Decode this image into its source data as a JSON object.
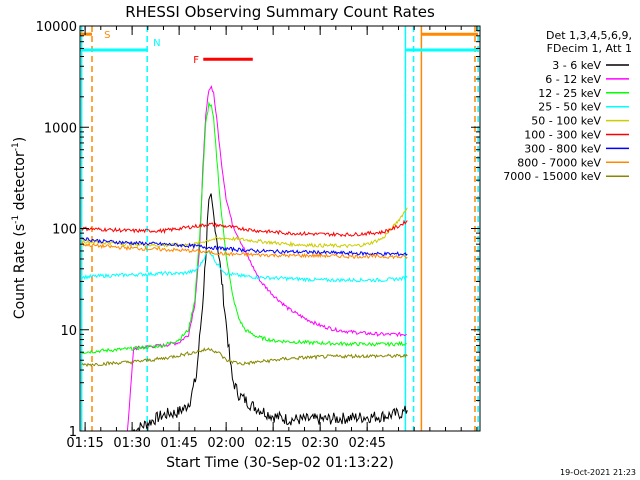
{
  "chart_data": {
    "type": "line",
    "title": "RHESSI Observing Summary Count Rates",
    "xlabel": "Start Time (30-Sep-02 01:13:22)",
    "ylabel": "Count Rate (s⁻¹ detector⁻¹)",
    "ylabel_parts": {
      "main": "Count Rate (s",
      "sup1": "-1",
      "mid": " detector",
      "sup2": "-1",
      "end": ")"
    },
    "footer": "19-Oct-2021 21:23",
    "y_scale": "log",
    "ylim": [
      1,
      10000
    ],
    "xlim_min": [
      73.37,
      201.0
    ],
    "y_ticks": [
      "1",
      "10",
      "100",
      "1000",
      "10000"
    ],
    "y_tick_values": [
      1,
      10,
      100,
      1000,
      10000
    ],
    "x_ticks": [
      "01:15",
      "01:30",
      "01:45",
      "02:00",
      "02:15",
      "02:30",
      "02:45"
    ],
    "x_tick_values": [
      75,
      90,
      105,
      120,
      135,
      150,
      165
    ],
    "legend": {
      "header": [
        "Det 1,3,4,5,6,9,",
        "FDecim 1, Att 1"
      ],
      "entries": [
        {
          "label": "3 - 6 keV",
          "color": "#000000"
        },
        {
          "label": "6 - 12 keV",
          "color": "#ff00ff"
        },
        {
          "label": "12 - 25 keV",
          "color": "#00ff00"
        },
        {
          "label": "25 - 50 keV",
          "color": "#00ffff"
        },
        {
          "label": "50 - 100 keV",
          "color": "#cccc00"
        },
        {
          "label": "100 - 300 keV",
          "color": "#ff0000"
        },
        {
          "label": "300 - 800 keV",
          "color": "#0000ff"
        },
        {
          "label": "800 - 7000 keV",
          "color": "#ff8800"
        },
        {
          "label": "7000 - 15000 keV",
          "color": "#888800"
        }
      ]
    },
    "annotations": [
      {
        "label": "S",
        "color": "#ff8800",
        "x_start": 73.4,
        "x_end": 77.2,
        "y": 8300
      },
      {
        "label": "N",
        "color": "#00ffff",
        "x_start": 73.4,
        "x_end": 94.8,
        "y": 5800
      },
      {
        "label": "F",
        "color": "#ff0000",
        "x_start": 112.7,
        "x_end": 128.5,
        "y": 4700
      },
      {
        "label": "",
        "color": "#00ffff",
        "x_start": 177.2,
        "x_end": 200.4,
        "y": 5800
      },
      {
        "label": "",
        "color": "#ff8800",
        "x_start": 182.3,
        "x_end": 200.4,
        "y": 8300
      }
    ],
    "vlines": [
      {
        "x": 73.9,
        "color": "#00ffff",
        "style": "solid"
      },
      {
        "x": 77.2,
        "color": "#ff8800",
        "style": "dashed"
      },
      {
        "x": 94.8,
        "color": "#00ffff",
        "style": "dashed"
      },
      {
        "x": 177.2,
        "color": "#00ffff",
        "style": "solid"
      },
      {
        "x": 179.8,
        "color": "#00ffff",
        "style": "dashed"
      },
      {
        "x": 182.3,
        "color": "#ff8800",
        "style": "solid"
      },
      {
        "x": 200.4,
        "color": "#00ffff",
        "style": "dashed"
      },
      {
        "x": 199.4,
        "color": "#ff8800",
        "style": "dashed"
      }
    ],
    "series": [
      {
        "name": "3 - 6 keV",
        "color": "#000000",
        "x": [
          90.3,
          95,
          99,
          102,
          104,
          105.5,
          107,
          108.5,
          110.5,
          112.5,
          113.5,
          114,
          114.5,
          115.2,
          115.8,
          116.8,
          118,
          119.2,
          120.3,
          121.2,
          122,
          124,
          128,
          135,
          140,
          150,
          160,
          170,
          176,
          177.8
        ],
        "y": [
          1,
          1.2,
          1.4,
          1.5,
          1.5,
          1.6,
          1.7,
          2,
          3.5,
          18,
          55,
          110,
          170,
          200,
          150,
          90,
          45,
          20,
          9.5,
          5,
          3.2,
          2.3,
          1.8,
          1.4,
          1.3,
          1.3,
          1.35,
          1.4,
          1.5,
          1.6
        ]
      },
      {
        "name": "6 - 12 keV",
        "color": "#ff00ff",
        "x": [
          88.5,
          90.5,
          95,
          100,
          105,
          108,
          110,
          111.5,
          112.5,
          113.5,
          114.5,
          115.3,
          116,
          117,
          118.3,
          120,
          122,
          125,
          128,
          131,
          135,
          140,
          145,
          150,
          155,
          160,
          165,
          170,
          175,
          177.6
        ],
        "y": [
          1,
          6.5,
          6.8,
          7,
          7.5,
          9,
          18,
          60,
          350,
          1300,
          2400,
          2500,
          2200,
          1200,
          500,
          200,
          110,
          70,
          45,
          30,
          22,
          16,
          13,
          11,
          10,
          9.5,
          9.2,
          9,
          9,
          9
        ]
      },
      {
        "name": "12 - 25 keV",
        "color": "#00ff00",
        "x": [
          73.9,
          80,
          90,
          100,
          105,
          108,
          110,
          111.5,
          112.5,
          113.5,
          114.5,
          115.3,
          116,
          117,
          118.3,
          120,
          122,
          124,
          126,
          130,
          135,
          145,
          155,
          165,
          172,
          177.6
        ],
        "y": [
          6,
          6.2,
          6.5,
          7,
          8,
          10,
          20,
          80,
          300,
          1100,
          1700,
          1600,
          1200,
          500,
          160,
          55,
          22,
          13,
          10,
          8.5,
          7.8,
          7.5,
          7.3,
          7.2,
          7.2,
          7.3
        ]
      },
      {
        "name": "25 - 50 keV",
        "color": "#00ffff",
        "x": [
          73.9,
          80,
          90,
          100,
          106,
          110,
          112,
          113.5,
          114.5,
          115.5,
          117,
          120,
          125,
          130,
          140,
          150,
          160,
          170,
          176,
          177.8
        ],
        "y": [
          33,
          34,
          35,
          36,
          36,
          38,
          45,
          55,
          60,
          55,
          45,
          36,
          34,
          33,
          32,
          31,
          31,
          31,
          32,
          33
        ]
      },
      {
        "name": "50 - 100 keV",
        "color": "#cccc00",
        "x": [
          73.9,
          80,
          90,
          100,
          110,
          115,
          120,
          125,
          130,
          140,
          150,
          160,
          165,
          170,
          174,
          176.5,
          177.8
        ],
        "y": [
          75,
          73,
          70,
          68,
          70,
          78,
          80,
          78,
          75,
          70,
          68,
          67,
          70,
          80,
          110,
          140,
          160
        ]
      },
      {
        "name": "100 - 300 keV",
        "color": "#ff0000",
        "x": [
          73.9,
          80,
          90,
          100,
          110,
          115,
          120,
          130,
          140,
          150,
          160,
          170,
          175,
          177.8
        ],
        "y": [
          100,
          98,
          95,
          95,
          105,
          110,
          105,
          95,
          90,
          88,
          87,
          92,
          105,
          120
        ]
      },
      {
        "name": "300 - 800 keV",
        "color": "#0000ff",
        "x": [
          73.9,
          80,
          90,
          100,
          110,
          120,
          130,
          140,
          150,
          160,
          170,
          177.8
        ],
        "y": [
          80,
          75,
          72,
          70,
          67,
          63,
          60,
          59,
          58,
          57,
          56,
          56
        ]
      },
      {
        "name": "800 - 7000 keV",
        "color": "#ff8800",
        "x": [
          73.9,
          80,
          90,
          100,
          110,
          120,
          130,
          140,
          150,
          160,
          170,
          177.8
        ],
        "y": [
          70,
          67,
          64,
          62,
          60,
          56,
          55,
          54,
          54,
          53,
          53,
          52
        ]
      },
      {
        "name": "7000 - 15000 keV",
        "color": "#888800",
        "x": [
          73.9,
          80,
          90,
          100,
          105,
          110,
          115,
          118,
          120,
          125,
          130,
          140,
          150,
          160,
          170,
          177.8
        ],
        "y": [
          4.5,
          4.6,
          4.8,
          5.2,
          5.6,
          6,
          6.5,
          5.8,
          5,
          4.6,
          4.8,
          5.2,
          5.4,
          5.5,
          5.5,
          5.5
        ]
      }
    ]
  }
}
